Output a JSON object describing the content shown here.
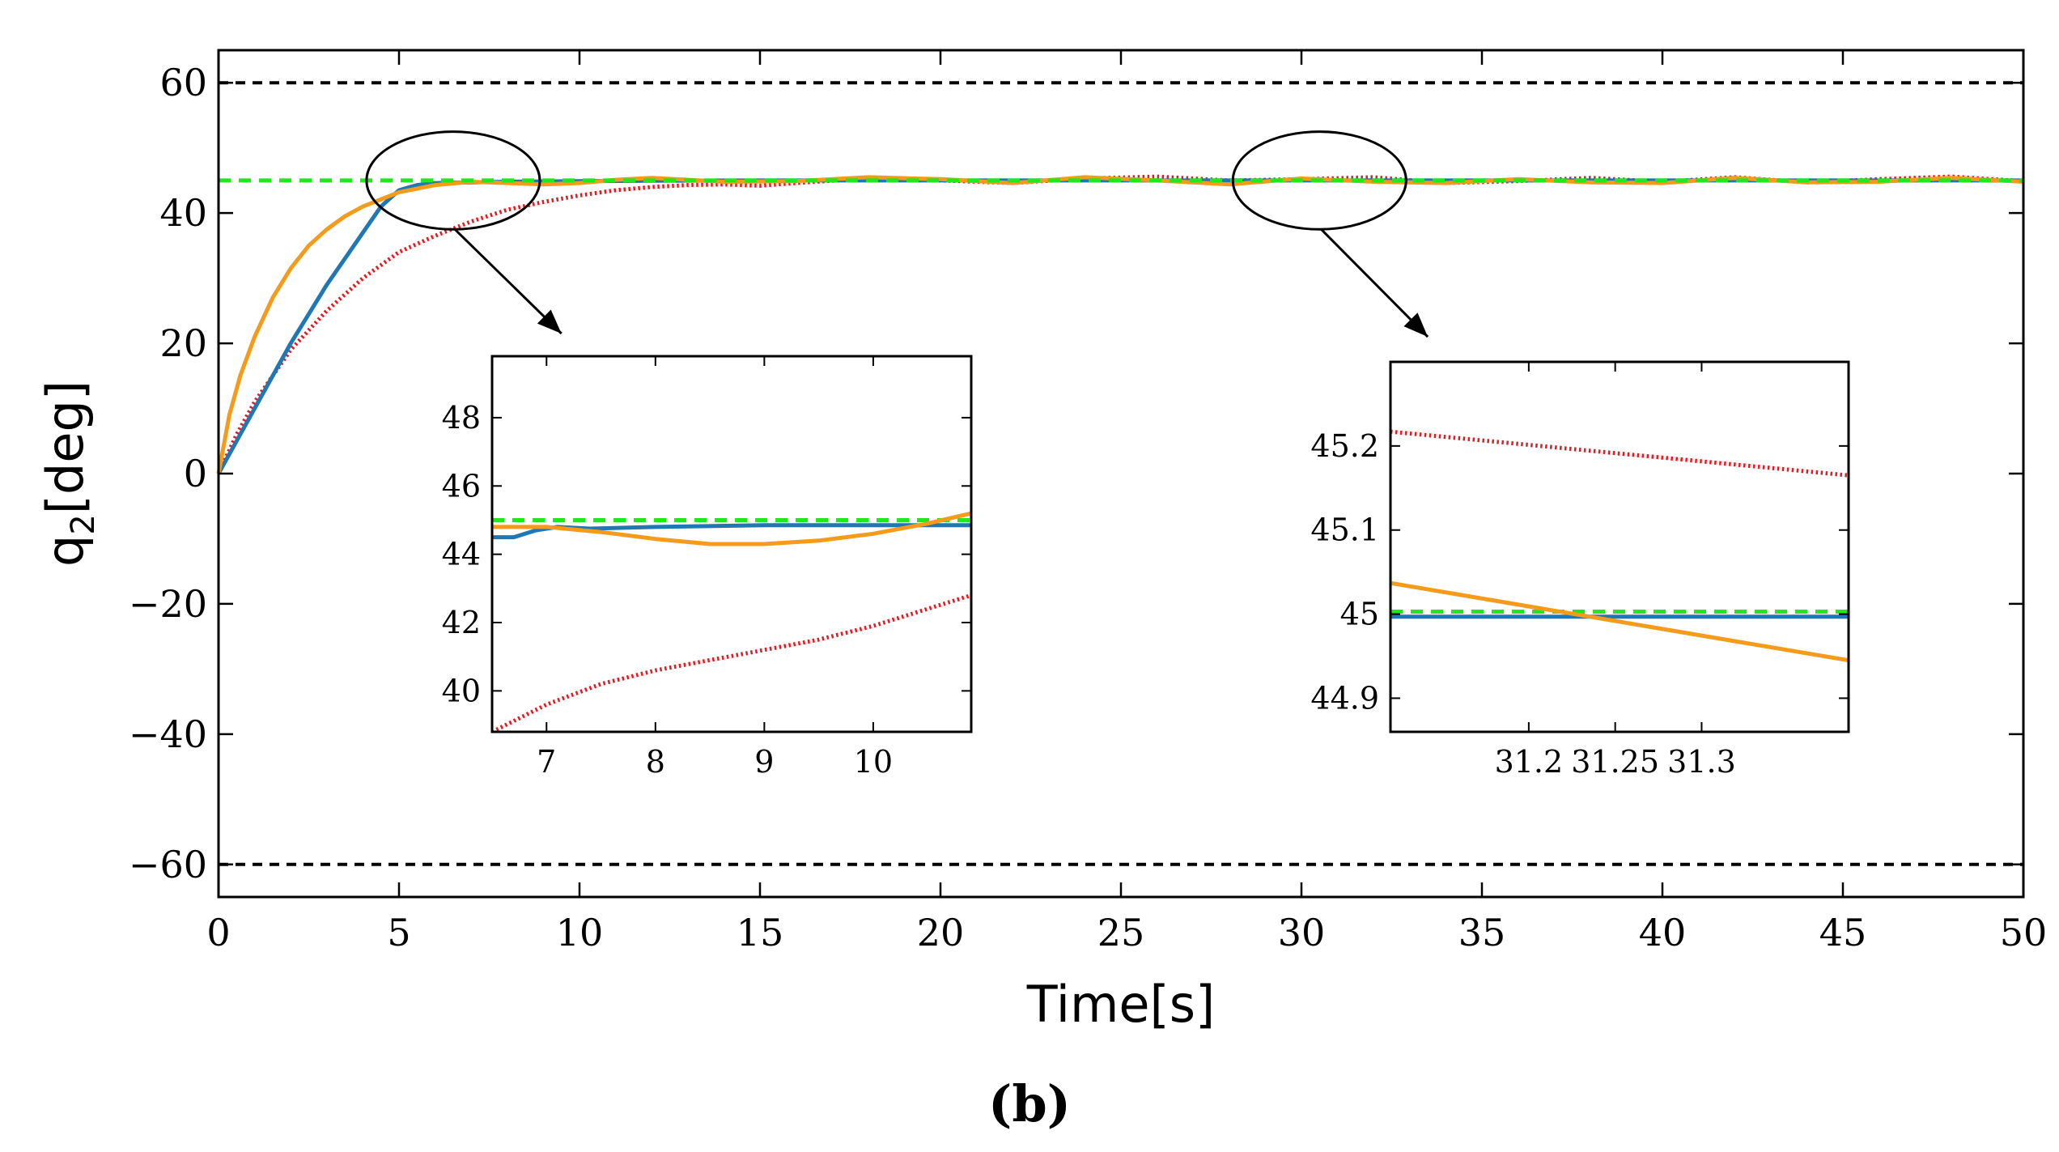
{
  "chart_data": {
    "type": "line",
    "panel_label": "(b)",
    "xlabel": "Time[s]",
    "ylabel_main": "q",
    "ylabel_sub": "2",
    "ylabel_tail": "[deg]",
    "xlim": [
      0,
      50
    ],
    "ylim": [
      -65,
      65
    ],
    "xticks": [
      0,
      5,
      10,
      15,
      20,
      25,
      30,
      35,
      40,
      45,
      50
    ],
    "xtick_labels": [
      "0",
      "5",
      "10",
      "15",
      "20",
      "25",
      "30",
      "35",
      "40",
      "45",
      "50"
    ],
    "yticks": [
      60,
      40,
      20,
      0,
      -20,
      -40,
      -60
    ],
    "ytick_labels": [
      "60",
      "40",
      "20",
      "0",
      "−20",
      "−40",
      "−60"
    ],
    "limits": [
      60,
      -60
    ],
    "reference": 45,
    "series": [
      {
        "name": "blue",
        "color": "#1f77b4",
        "style": "solid",
        "x": [
          0,
          0.5,
          1,
          1.5,
          2,
          2.5,
          3,
          3.5,
          4,
          4.5,
          5,
          5.5,
          6,
          7,
          8,
          9,
          10,
          12,
          15,
          20,
          25,
          30,
          35,
          40,
          45,
          50
        ],
        "y": [
          0,
          5,
          10,
          15,
          20,
          24.5,
          29,
          33,
          37,
          41,
          43.5,
          44.3,
          44.6,
          44.7,
          44.8,
          44.85,
          44.9,
          44.95,
          45,
          45,
          45,
          45,
          45,
          45,
          45,
          45
        ]
      },
      {
        "name": "orange",
        "color": "#f59b1b",
        "style": "solid",
        "x": [
          0,
          0.3,
          0.6,
          1,
          1.5,
          2,
          2.5,
          3,
          3.5,
          4,
          5,
          6,
          7,
          8,
          9,
          10,
          11,
          12,
          14,
          16,
          18,
          20,
          22,
          24,
          26,
          28,
          30,
          32,
          34,
          36,
          38,
          40,
          42,
          44,
          46,
          48,
          50
        ],
        "y": [
          0,
          9,
          15,
          21,
          27,
          31.5,
          35,
          37.5,
          39.5,
          41,
          43.2,
          44.3,
          44.8,
          44.6,
          44.4,
          44.6,
          45.1,
          45.4,
          44.8,
          44.9,
          45.5,
          45.2,
          44.6,
          45.5,
          45.0,
          44.4,
          45.3,
          44.8,
          44.6,
          45.2,
          44.7,
          44.6,
          45.4,
          44.7,
          44.8,
          45.4,
          44.8
        ]
      },
      {
        "name": "red",
        "color": "#e8191f",
        "style": "dotted",
        "x": [
          0,
          0.5,
          1,
          2,
          3,
          4,
          5,
          6,
          7,
          8,
          9,
          10,
          11,
          12,
          13,
          14,
          15,
          16,
          18,
          20,
          22,
          24,
          26,
          28,
          30,
          32,
          34,
          36,
          38,
          40,
          42,
          44,
          46,
          48,
          50
        ],
        "y": [
          0,
          6,
          11,
          19,
          25,
          30,
          34,
          36.5,
          38.7,
          40.5,
          41.7,
          42.7,
          43.5,
          44.0,
          44.3,
          44.4,
          44.2,
          44.6,
          45.3,
          45.0,
          44.6,
          45.3,
          45.6,
          45.0,
          45.2,
          45.5,
          44.6,
          44.9,
          45.4,
          44.8,
          45.5,
          44.7,
          45.2,
          45.6,
          44.9
        ]
      },
      {
        "name": "green",
        "color": "#22e61e",
        "style": "dashed",
        "x": [
          0,
          50
        ],
        "y": [
          45,
          45
        ]
      }
    ],
    "annotations": [
      {
        "type": "ellipse",
        "cx": 6.5,
        "cy": 45,
        "rx": 2.4,
        "ry": 7.5,
        "arrow_to": [
          9.5,
          21.5
        ]
      },
      {
        "type": "ellipse",
        "cx": 30.5,
        "cy": 45,
        "rx": 2.4,
        "ry": 7.5,
        "arrow_to": [
          33.5,
          21
        ]
      }
    ],
    "insets": [
      {
        "name": "zoom-1",
        "xlim": [
          6.5,
          10.9
        ],
        "ylim": [
          38.8,
          49.8
        ],
        "xticks": [
          7,
          8,
          9,
          10
        ],
        "xtick_labels": [
          "7",
          "8",
          "9",
          "10"
        ],
        "yticks": [
          40,
          42,
          44,
          46,
          48
        ],
        "ytick_labels": [
          "40",
          "42",
          "44",
          "46",
          "48"
        ],
        "series": [
          {
            "name": "green",
            "color": "#22e61e",
            "style": "dashed",
            "x": [
              6.5,
              10.9
            ],
            "y": [
              45,
              45
            ]
          },
          {
            "name": "blue",
            "color": "#1f77b4",
            "style": "solid",
            "x": [
              6.5,
              6.7,
              6.9,
              7.1,
              7.4,
              8,
              9,
              10,
              10.9
            ],
            "y": [
              44.5,
              44.5,
              44.7,
              44.8,
              44.75,
              44.8,
              44.85,
              44.85,
              44.85
            ]
          },
          {
            "name": "orange",
            "color": "#f59b1b",
            "style": "solid",
            "x": [
              6.5,
              7,
              7.5,
              8,
              8.5,
              9,
              9.5,
              10,
              10.5,
              10.9
            ],
            "y": [
              44.8,
              44.8,
              44.65,
              44.45,
              44.3,
              44.3,
              44.4,
              44.6,
              44.9,
              45.2
            ]
          },
          {
            "name": "red",
            "color": "#e8191f",
            "style": "dotted",
            "x": [
              6.5,
              7,
              7.5,
              8,
              8.5,
              9,
              9.5,
              10,
              10.5,
              10.9
            ],
            "y": [
              38.8,
              39.6,
              40.2,
              40.6,
              40.9,
              41.2,
              41.5,
              41.9,
              42.4,
              42.8
            ]
          }
        ]
      },
      {
        "name": "zoom-2",
        "xlim": [
          31.12,
          31.385
        ],
        "ylim": [
          44.86,
          45.3
        ],
        "xticks": [
          31.2,
          31.25,
          31.3
        ],
        "xtick_labels": [
          "31.2",
          "31.25",
          "31.3"
        ],
        "yticks": [
          44.9,
          45,
          45.1,
          45.2
        ],
        "ytick_labels": [
          "44.9",
          "45",
          "45.1",
          "45.2"
        ],
        "series": [
          {
            "name": "blue",
            "color": "#1f77b4",
            "style": "solid",
            "x": [
              31.12,
              31.385
            ],
            "y": [
              44.997,
              44.997
            ]
          },
          {
            "name": "green",
            "color": "#22e61e",
            "style": "dashed",
            "x": [
              31.12,
              31.385
            ],
            "y": [
              45.003,
              45.003
            ]
          },
          {
            "name": "orange",
            "color": "#f59b1b",
            "style": "solid",
            "x": [
              31.12,
              31.385
            ],
            "y": [
              45.037,
              44.945
            ]
          },
          {
            "name": "red",
            "color": "#e8191f",
            "style": "dotted",
            "x": [
              31.12,
              31.385
            ],
            "y": [
              45.217,
              45.165
            ]
          }
        ]
      }
    ]
  }
}
